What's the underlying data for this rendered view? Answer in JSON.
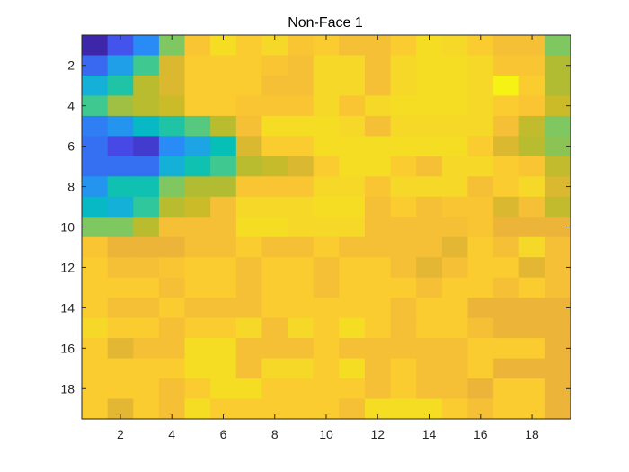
{
  "chart_data": {
    "type": "heatmap",
    "title": "Non-Face 1",
    "xlabel": "",
    "ylabel": "",
    "grid": false,
    "colormap": "parula",
    "clim": [
      0,
      9
    ],
    "xlim": [
      0.5,
      19.5
    ],
    "ylim": [
      0.5,
      19.5
    ],
    "y_direction": "reverse",
    "x_ticks": [
      "2",
      "4",
      "6",
      "8",
      "10",
      "12",
      "14",
      "16",
      "18"
    ],
    "y_ticks": [
      "2",
      "4",
      "6",
      "8",
      "10",
      "12",
      "14",
      "16",
      "18"
    ],
    "rows": 19,
    "cols": 19,
    "values": [
      [
        0.0,
        1.2,
        2.0,
        5.0,
        7.8,
        8.3,
        8.0,
        8.2,
        7.8,
        8.0,
        7.6,
        7.6,
        8.0,
        8.3,
        8.2,
        8.0,
        7.6,
        7.6,
        5.0
      ],
      [
        1.5,
        2.4,
        4.2,
        6.8,
        8.0,
        8.0,
        8.0,
        7.8,
        7.6,
        8.2,
        8.2,
        7.6,
        8.2,
        8.3,
        8.3,
        8.2,
        7.8,
        7.8,
        5.8
      ],
      [
        2.8,
        3.8,
        6.0,
        6.8,
        8.0,
        8.0,
        8.0,
        7.6,
        7.6,
        8.2,
        8.2,
        7.6,
        8.2,
        8.3,
        8.3,
        8.2,
        8.8,
        8.0,
        5.8
      ],
      [
        4.2,
        5.5,
        6.0,
        6.5,
        8.0,
        8.0,
        7.8,
        7.8,
        7.8,
        8.2,
        7.8,
        8.2,
        8.3,
        8.3,
        8.3,
        8.2,
        8.0,
        7.8,
        6.5
      ],
      [
        1.8,
        2.2,
        3.2,
        3.8,
        4.5,
        6.0,
        7.6,
        8.3,
        8.3,
        8.3,
        8.2,
        7.6,
        8.2,
        8.2,
        8.2,
        8.2,
        7.6,
        6.2,
        5.0
      ],
      [
        1.6,
        1.0,
        0.6,
        2.0,
        2.5,
        3.5,
        6.8,
        8.0,
        8.0,
        8.3,
        8.3,
        8.3,
        8.3,
        8.3,
        8.3,
        8.0,
        6.8,
        6.0,
        5.2
      ],
      [
        1.6,
        1.6,
        1.6,
        2.8,
        3.6,
        4.2,
        6.0,
        6.3,
        6.8,
        8.0,
        8.3,
        8.3,
        8.0,
        7.6,
        8.2,
        8.2,
        8.0,
        7.8,
        6.2
      ],
      [
        2.2,
        3.6,
        3.6,
        5.0,
        5.8,
        5.8,
        7.8,
        7.8,
        7.8,
        8.2,
        8.2,
        7.8,
        8.2,
        8.2,
        8.2,
        7.6,
        8.0,
        8.2,
        6.8
      ],
      [
        3.2,
        2.8,
        4.0,
        6.0,
        6.5,
        7.6,
        8.2,
        8.2,
        8.2,
        8.3,
        8.3,
        7.6,
        8.0,
        7.6,
        7.8,
        7.8,
        6.8,
        7.6,
        6.2
      ],
      [
        5.0,
        5.0,
        6.0,
        7.6,
        7.6,
        7.6,
        8.3,
        8.3,
        8.2,
        8.2,
        8.2,
        7.6,
        7.6,
        7.6,
        7.6,
        7.8,
        7.2,
        7.2,
        7.2
      ],
      [
        7.8,
        7.2,
        7.2,
        7.2,
        7.6,
        7.6,
        8.0,
        7.6,
        7.6,
        8.0,
        7.6,
        7.6,
        7.6,
        7.6,
        7.0,
        8.0,
        7.6,
        8.2,
        7.6
      ],
      [
        8.0,
        7.6,
        7.6,
        7.8,
        8.0,
        8.0,
        7.6,
        8.0,
        8.0,
        7.6,
        8.0,
        8.0,
        7.6,
        7.0,
        7.6,
        8.0,
        8.0,
        7.0,
        7.6
      ],
      [
        8.0,
        8.0,
        8.0,
        7.6,
        8.0,
        8.0,
        7.6,
        8.0,
        8.0,
        7.6,
        8.0,
        8.0,
        8.0,
        7.6,
        8.0,
        8.0,
        7.6,
        8.0,
        7.6
      ],
      [
        8.0,
        7.6,
        7.6,
        8.0,
        7.6,
        7.6,
        7.6,
        8.0,
        8.0,
        8.0,
        8.0,
        8.0,
        7.6,
        8.0,
        8.0,
        7.2,
        7.2,
        7.2,
        7.2
      ],
      [
        8.2,
        8.0,
        8.0,
        7.6,
        8.0,
        8.0,
        8.2,
        7.6,
        8.2,
        8.0,
        8.3,
        8.0,
        7.6,
        8.0,
        8.0,
        7.6,
        7.2,
        7.2,
        7.2
      ],
      [
        8.0,
        7.0,
        7.6,
        7.6,
        8.3,
        8.3,
        7.6,
        7.6,
        7.6,
        8.0,
        7.6,
        7.6,
        7.6,
        7.6,
        7.6,
        8.0,
        8.0,
        8.0,
        7.2
      ],
      [
        8.0,
        8.0,
        8.0,
        8.0,
        8.3,
        8.3,
        7.6,
        8.2,
        8.2,
        8.0,
        8.3,
        7.6,
        8.0,
        7.6,
        7.6,
        8.0,
        7.2,
        7.2,
        7.2
      ],
      [
        8.0,
        8.0,
        8.0,
        7.6,
        8.0,
        8.3,
        8.3,
        8.0,
        8.0,
        8.0,
        8.0,
        7.6,
        8.0,
        7.6,
        7.6,
        7.2,
        8.0,
        8.0,
        7.2
      ],
      [
        8.0,
        7.0,
        8.0,
        7.6,
        8.3,
        8.0,
        8.0,
        8.0,
        8.0,
        8.0,
        7.6,
        8.3,
        8.3,
        8.3,
        8.0,
        7.6,
        8.0,
        8.0,
        7.2
      ]
    ]
  }
}
